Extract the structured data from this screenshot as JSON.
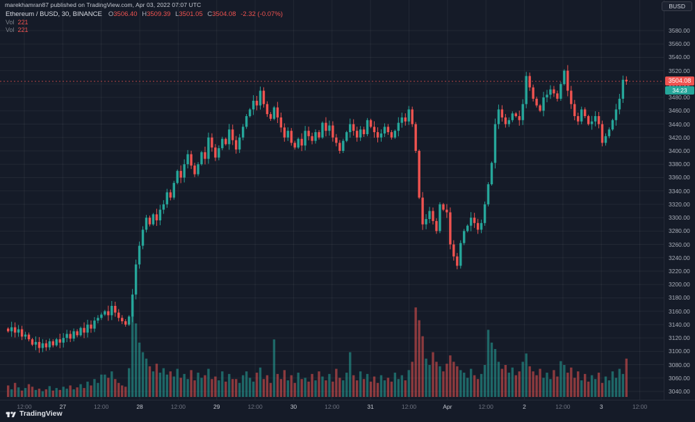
{
  "header": {
    "published_text": "marekhamran87 published on TradingView.com, Apr 03, 2022 07:07 UTC",
    "currency_button": "BUSD"
  },
  "legend": {
    "symbol_title": "Ethereum / BUSD, 30, BINANCE",
    "open_label": "O",
    "open": "3506.40",
    "high_label": "H",
    "high": "3509.39",
    "low_label": "L",
    "low": "3501.05",
    "close_label": "C",
    "close": "3504.08",
    "change": "-2.32 (-0.07%)",
    "vol_rows": [
      {
        "label": "Vol",
        "value": "221"
      },
      {
        "label": "Vol",
        "value": "221"
      }
    ]
  },
  "price_scale": {
    "badge_price": "3504.08",
    "badge_countdown": "34:23"
  },
  "time_scale": {
    "labels": [
      {
        "text": "12:00",
        "type": "time"
      },
      {
        "text": "27",
        "type": "day"
      },
      {
        "text": "12:00",
        "type": "time"
      },
      {
        "text": "28",
        "type": "day"
      },
      {
        "text": "12:00",
        "type": "time"
      },
      {
        "text": "29",
        "type": "day"
      },
      {
        "text": "12:00",
        "type": "time"
      },
      {
        "text": "30",
        "type": "day"
      },
      {
        "text": "12:00",
        "type": "time"
      },
      {
        "text": "31",
        "type": "day"
      },
      {
        "text": "12:00",
        "type": "time"
      },
      {
        "text": "Apr",
        "type": "day"
      },
      {
        "text": "12:00",
        "type": "time"
      },
      {
        "text": "2",
        "type": "day"
      },
      {
        "text": "12:00",
        "type": "time"
      },
      {
        "text": "3",
        "type": "day"
      },
      {
        "text": "12:00",
        "type": "time"
      }
    ]
  },
  "footer": {
    "logo_text": "TradingView"
  },
  "colors": {
    "background": "#151b28",
    "up": "#26a69a",
    "down": "#ef5350",
    "vol_up": "rgba(38,166,154,0.55)",
    "vol_down": "rgba(239,83,80,0.55)",
    "grid": "rgba(255,255,255,0.06)",
    "badge_price_bg": "#ef5350",
    "badge_countdown_bg": "#26a69a"
  },
  "chart_data": {
    "type": "candlestick",
    "title": "Ethereum / BUSD 30-minute candles with volume, BINANCE",
    "symbol": "ETHBUSD",
    "interval_minutes": 30,
    "exchange": "BINANCE",
    "legend_ohlc": {
      "open": 3506.4,
      "high": 3509.39,
      "low": 3501.05,
      "close": 3504.08,
      "change": -2.32,
      "change_pct": -0.07
    },
    "y_axis": {
      "min": 3040,
      "max": 3580,
      "step": 20,
      "unit": "BUSD"
    },
    "x_axis_labels": [
      "12:00",
      "27",
      "12:00",
      "28",
      "12:00",
      "29",
      "12:00",
      "30",
      "12:00",
      "31",
      "12:00",
      "Apr",
      "12:00",
      "2",
      "12:00",
      "3",
      "12:00"
    ],
    "grid": true,
    "last_price": 3504.08,
    "first_open": 3134,
    "closes": [
      3130,
      3136,
      3128,
      3133,
      3122,
      3125,
      3118,
      3110,
      3114,
      3105,
      3112,
      3106,
      3115,
      3109,
      3118,
      3113,
      3120,
      3126,
      3119,
      3130,
      3124,
      3135,
      3128,
      3140,
      3134,
      3146,
      3150,
      3155,
      3160,
      3154,
      3168,
      3158,
      3150,
      3145,
      3140,
      3152,
      3185,
      3230,
      3258,
      3282,
      3300,
      3290,
      3305,
      3296,
      3312,
      3320,
      3338,
      3330,
      3352,
      3370,
      3360,
      3380,
      3395,
      3378,
      3365,
      3380,
      3398,
      3388,
      3420,
      3405,
      3390,
      3404,
      3418,
      3410,
      3432,
      3416,
      3402,
      3420,
      3436,
      3452,
      3462,
      3475,
      3468,
      3490,
      3470,
      3455,
      3448,
      3465,
      3450,
      3435,
      3420,
      3430,
      3412,
      3405,
      3418,
      3408,
      3430,
      3422,
      3415,
      3428,
      3420,
      3442,
      3430,
      3438,
      3420,
      3412,
      3400,
      3415,
      3428,
      3440,
      3430,
      3420,
      3432,
      3425,
      3446,
      3436,
      3428,
      3420,
      3426,
      3436,
      3428,
      3420,
      3430,
      3442,
      3450,
      3444,
      3462,
      3440,
      3400,
      3330,
      3290,
      3298,
      3310,
      3295,
      3280,
      3320,
      3312,
      3308,
      3260,
      3242,
      3228,
      3262,
      3280,
      3288,
      3300,
      3292,
      3282,
      3292,
      3320,
      3350,
      3382,
      3440,
      3462,
      3450,
      3440,
      3446,
      3456,
      3452,
      3446,
      3470,
      3512,
      3495,
      3478,
      3468,
      3460,
      3480,
      3484,
      3492,
      3486,
      3478,
      3500,
      3520,
      3490,
      3470,
      3452,
      3444,
      3462,
      3452,
      3440,
      3444,
      3452,
      3440,
      3412,
      3422,
      3432,
      3446,
      3462,
      3478,
      3506.4,
      3504.08
    ],
    "volumes": [
      18,
      12,
      22,
      15,
      10,
      14,
      20,
      16,
      11,
      13,
      9,
      12,
      17,
      10,
      14,
      11,
      16,
      13,
      18,
      12,
      15,
      20,
      14,
      24,
      18,
      28,
      22,
      35,
      35,
      30,
      40,
      28,
      22,
      18,
      16,
      45,
      150,
      115,
      85,
      70,
      60,
      48,
      40,
      52,
      38,
      45,
      35,
      40,
      32,
      44,
      30,
      36,
      28,
      42,
      26,
      38,
      30,
      34,
      44,
      28,
      32,
      26,
      40,
      24,
      36,
      28,
      28,
      22,
      34,
      40,
      30,
      24,
      38,
      46,
      28,
      34,
      22,
      90,
      36,
      28,
      42,
      26,
      34,
      22,
      38,
      28,
      30,
      24,
      36,
      26,
      40,
      32,
      26,
      36,
      24,
      44,
      30,
      26,
      38,
      70,
      34,
      26,
      40,
      28,
      36,
      24,
      32,
      22,
      34,
      26,
      30,
      24,
      38,
      28,
      34,
      26,
      42,
      55,
      140,
      120,
      95,
      60,
      50,
      70,
      55,
      48,
      40,
      52,
      65,
      55,
      48,
      42,
      38,
      30,
      44,
      34,
      28,
      36,
      50,
      105,
      85,
      75,
      55,
      44,
      50,
      38,
      46,
      34,
      40,
      55,
      68,
      48,
      40,
      34,
      44,
      30,
      38,
      28,
      42,
      32,
      56,
      50,
      38,
      46,
      30,
      40,
      26,
      36,
      24,
      34,
      28,
      38,
      22,
      32,
      26,
      40,
      30,
      44,
      36,
      60
    ]
  }
}
